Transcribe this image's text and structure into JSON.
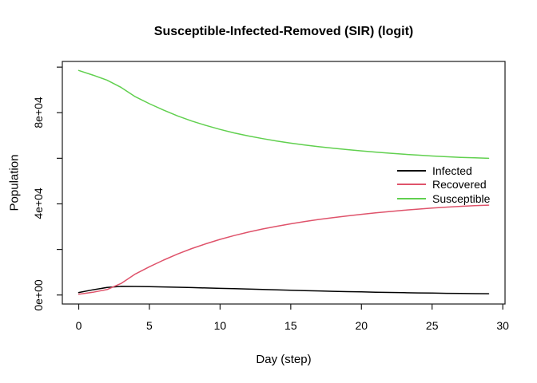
{
  "title": "Susceptible-Infected-Removed (SIR) (logit)",
  "chart_data": {
    "type": "line",
    "title": "Susceptible-Infected-Removed (SIR) (logit)",
    "xlabel": "Day (step)",
    "ylabel": "Population",
    "x": [
      0,
      1,
      2,
      3,
      4,
      5,
      6,
      7,
      8,
      9,
      10,
      11,
      12,
      13,
      14,
      15,
      16,
      17,
      18,
      19,
      20,
      21,
      22,
      23,
      24,
      25,
      26,
      27,
      28,
      29
    ],
    "series": [
      {
        "name": "Infected",
        "color": "#000000",
        "values": [
          1100,
          2300,
          3300,
          3800,
          3760,
          3660,
          3540,
          3400,
          3250,
          3090,
          2930,
          2760,
          2590,
          2420,
          2250,
          2090,
          1930,
          1780,
          1630,
          1490,
          1360,
          1240,
          1130,
          1020,
          920,
          830,
          750,
          680,
          610,
          550
        ]
      },
      {
        "name": "Recovered",
        "color": "#DF536B",
        "values": [
          350,
          1200,
          2400,
          5100,
          9200,
          12400,
          15300,
          18000,
          20400,
          22500,
          24400,
          26100,
          27600,
          28950,
          30150,
          31250,
          32250,
          33150,
          33950,
          34700,
          35400,
          36050,
          36650,
          37200,
          37700,
          38150,
          38550,
          38900,
          39200,
          39450
        ]
      },
      {
        "name": "Susceptible",
        "color": "#61D04F",
        "values": [
          98550,
          96500,
          94300,
          91100,
          87040,
          83940,
          81160,
          78600,
          76350,
          74410,
          72670,
          71140,
          69810,
          68630,
          67600,
          66660,
          65820,
          65070,
          64420,
          63810,
          63240,
          62710,
          62220,
          61780,
          61380,
          61020,
          60700,
          60420,
          60190,
          60000
        ]
      }
    ],
    "xticks": {
      "values": [
        0,
        5,
        10,
        15,
        20,
        25,
        30
      ],
      "labels": [
        "0",
        "5",
        "10",
        "15",
        "20",
        "25",
        "30"
      ]
    },
    "yticks": {
      "values": [
        0,
        20000,
        40000,
        60000,
        80000,
        100000
      ],
      "labels": [
        "0e+00",
        "",
        "4e+04",
        "",
        "8e+04",
        ""
      ]
    },
    "xlim": [
      -1.16,
      30.16
    ],
    "ylim": [
      -3950,
      102500
    ],
    "grid": false,
    "legend": {
      "position": "right-middle",
      "border": false
    }
  }
}
